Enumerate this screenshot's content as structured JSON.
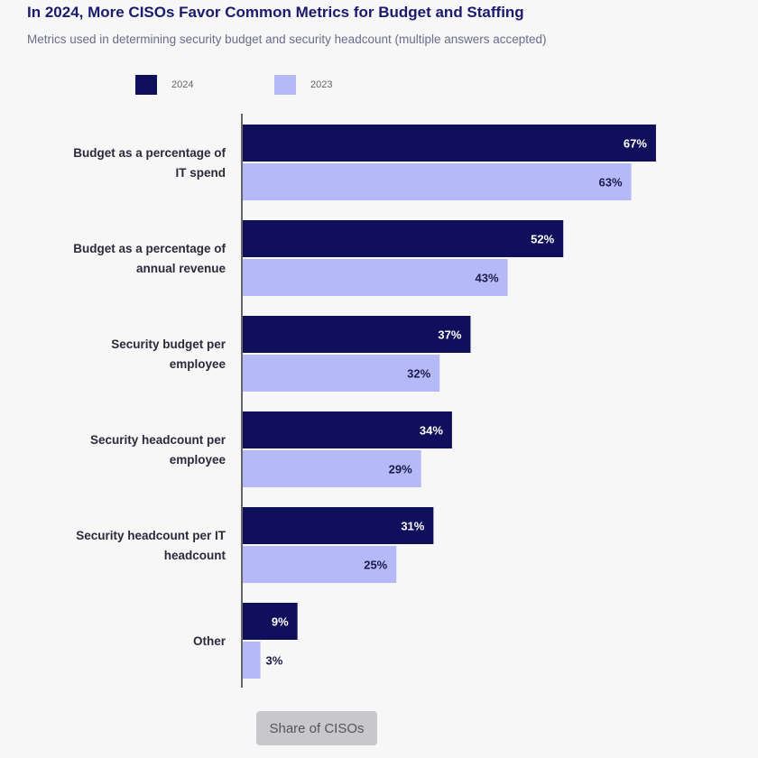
{
  "header": {
    "title": "In 2024, More CISOs Favor Common Metrics for Budget and Staffing",
    "subtitle": "Metrics used in determining security budget and security headcount (multiple answers accepted)"
  },
  "legend": [
    {
      "label": "2024",
      "color": "#0f0f5c"
    },
    {
      "label": "2023",
      "color": "#b5b9f7"
    }
  ],
  "chart_data": {
    "type": "bar",
    "orientation": "horizontal",
    "categories": [
      [
        "Budget as a percentage of",
        "IT spend"
      ],
      [
        "Budget as a percentage of",
        "annual revenue"
      ],
      [
        "Security budget per",
        "employee"
      ],
      [
        "Security headcount per",
        "employee"
      ],
      [
        "Security headcount per IT",
        "headcount"
      ],
      [
        "Other"
      ]
    ],
    "series": [
      {
        "name": "2024",
        "color": "#0f0f5c",
        "values": [
          67,
          52,
          37,
          34,
          31,
          9
        ]
      },
      {
        "name": "2023",
        "color": "#b5b9f7",
        "values": [
          63,
          43,
          32,
          29,
          25,
          3
        ]
      }
    ],
    "value_suffix": "%",
    "xlim": [
      0,
      100
    ],
    "grid": false,
    "legend_position": "top-left"
  },
  "footer": {
    "button_label": "Share of CISOs"
  }
}
